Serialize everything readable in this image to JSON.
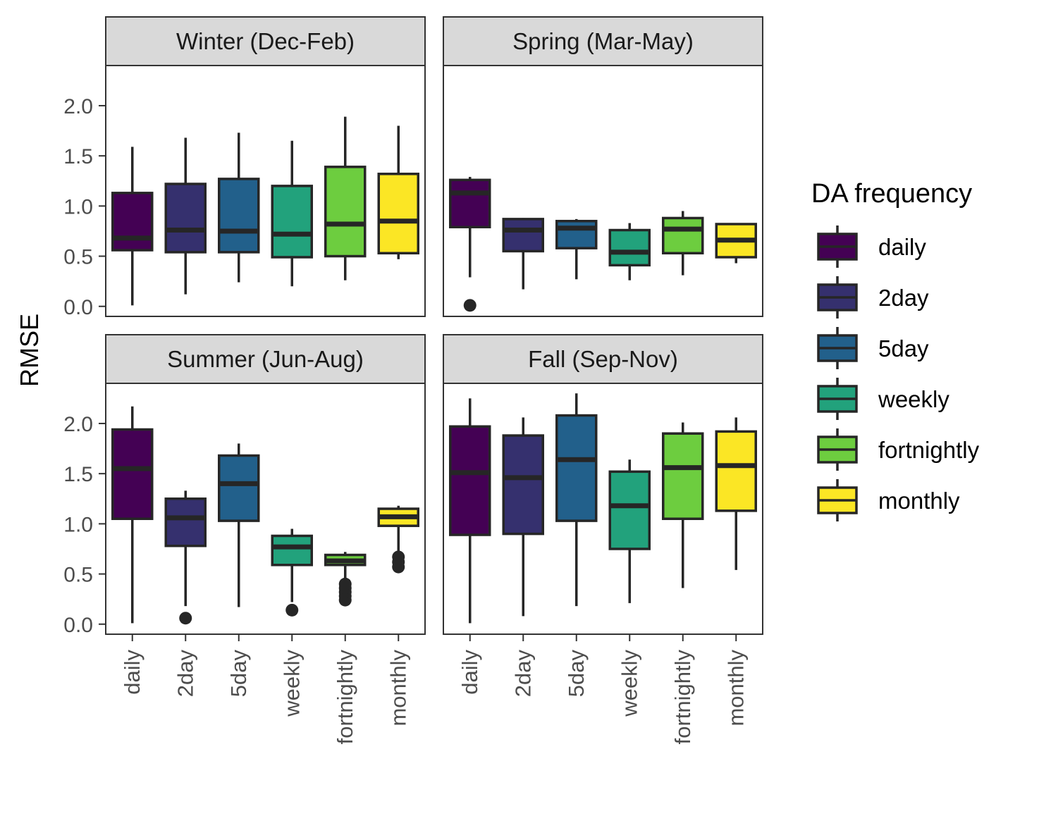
{
  "chart_data": {
    "type": "boxplot",
    "ylabel": "RMSE",
    "y_ticks": [
      "0.0",
      "0.5",
      "1.0",
      "1.5",
      "2.0"
    ],
    "ylim": [
      -0.1,
      2.4
    ],
    "categories": [
      "daily",
      "2day",
      "5day",
      "weekly",
      "fortnightly",
      "monthly"
    ],
    "colors": [
      "#440154",
      "#35306e",
      "#22608b",
      "#22a27c",
      "#6dcd3f",
      "#fbe625"
    ],
    "legend": {
      "title": "DA frequency",
      "items": [
        "daily",
        "2day",
        "5day",
        "weekly",
        "fortnightly",
        "monthly"
      ],
      "position": "right"
    },
    "panels": [
      {
        "title": "Winter (Dec-Feb)",
        "boxes": [
          {
            "category": "daily",
            "lower_whisker": 0.01,
            "q1": 0.56,
            "median": 0.68,
            "q3": 1.13,
            "upper_whisker": 1.59,
            "outliers": []
          },
          {
            "category": "2day",
            "lower_whisker": 0.12,
            "q1": 0.54,
            "median": 0.76,
            "q3": 1.22,
            "upper_whisker": 1.68,
            "outliers": []
          },
          {
            "category": "5day",
            "lower_whisker": 0.24,
            "q1": 0.54,
            "median": 0.75,
            "q3": 1.27,
            "upper_whisker": 1.73,
            "outliers": []
          },
          {
            "category": "weekly",
            "lower_whisker": 0.2,
            "q1": 0.49,
            "median": 0.72,
            "q3": 1.2,
            "upper_whisker": 1.65,
            "outliers": []
          },
          {
            "category": "fortnightly",
            "lower_whisker": 0.26,
            "q1": 0.5,
            "median": 0.82,
            "q3": 1.39,
            "upper_whisker": 1.89,
            "outliers": []
          },
          {
            "category": "monthly",
            "lower_whisker": 0.47,
            "q1": 0.53,
            "median": 0.85,
            "q3": 1.32,
            "upper_whisker": 1.8,
            "outliers": []
          }
        ]
      },
      {
        "title": "Spring (Mar-May)",
        "boxes": [
          {
            "category": "daily",
            "lower_whisker": 0.29,
            "q1": 0.79,
            "median": 1.13,
            "q3": 1.26,
            "upper_whisker": 1.29,
            "outliers": [
              0.01
            ]
          },
          {
            "category": "2day",
            "lower_whisker": 0.17,
            "q1": 0.55,
            "median": 0.76,
            "q3": 0.87,
            "upper_whisker": 0.88,
            "outliers": []
          },
          {
            "category": "5day",
            "lower_whisker": 0.27,
            "q1": 0.58,
            "median": 0.78,
            "q3": 0.85,
            "upper_whisker": 0.87,
            "outliers": []
          },
          {
            "category": "weekly",
            "lower_whisker": 0.26,
            "q1": 0.41,
            "median": 0.54,
            "q3": 0.76,
            "upper_whisker": 0.83,
            "outliers": []
          },
          {
            "category": "fortnightly",
            "lower_whisker": 0.31,
            "q1": 0.53,
            "median": 0.77,
            "q3": 0.88,
            "upper_whisker": 0.95,
            "outliers": []
          },
          {
            "category": "monthly",
            "lower_whisker": 0.43,
            "q1": 0.49,
            "median": 0.66,
            "q3": 0.82,
            "upper_whisker": 0.83,
            "outliers": []
          }
        ]
      },
      {
        "title": "Summer (Jun-Aug)",
        "boxes": [
          {
            "category": "daily",
            "lower_whisker": 0.01,
            "q1": 1.05,
            "median": 1.55,
            "q3": 1.94,
            "upper_whisker": 2.17,
            "outliers": []
          },
          {
            "category": "2day",
            "lower_whisker": 0.18,
            "q1": 0.78,
            "median": 1.06,
            "q3": 1.25,
            "upper_whisker": 1.33,
            "outliers": [
              0.06
            ]
          },
          {
            "category": "5day",
            "lower_whisker": 0.17,
            "q1": 1.03,
            "median": 1.4,
            "q3": 1.68,
            "upper_whisker": 1.8,
            "outliers": []
          },
          {
            "category": "weekly",
            "lower_whisker": 0.22,
            "q1": 0.59,
            "median": 0.77,
            "q3": 0.88,
            "upper_whisker": 0.95,
            "outliers": [
              0.14
            ]
          },
          {
            "category": "fortnightly",
            "lower_whisker": 0.42,
            "q1": 0.59,
            "median": 0.63,
            "q3": 0.69,
            "upper_whisker": 0.72,
            "outliers": [
              0.24,
              0.28,
              0.32,
              0.36,
              0.4
            ]
          },
          {
            "category": "monthly",
            "lower_whisker": 0.71,
            "q1": 0.98,
            "median": 1.07,
            "q3": 1.15,
            "upper_whisker": 1.18,
            "outliers": [
              0.57,
              0.62,
              0.67
            ]
          }
        ]
      },
      {
        "title": "Fall (Sep-Nov)",
        "boxes": [
          {
            "category": "daily",
            "lower_whisker": 0.01,
            "q1": 0.89,
            "median": 1.51,
            "q3": 1.97,
            "upper_whisker": 2.25,
            "outliers": []
          },
          {
            "category": "2day",
            "lower_whisker": 0.08,
            "q1": 0.9,
            "median": 1.46,
            "q3": 1.88,
            "upper_whisker": 2.06,
            "outliers": []
          },
          {
            "category": "5day",
            "lower_whisker": 0.18,
            "q1": 1.03,
            "median": 1.64,
            "q3": 2.08,
            "upper_whisker": 2.3,
            "outliers": []
          },
          {
            "category": "weekly",
            "lower_whisker": 0.21,
            "q1": 0.75,
            "median": 1.18,
            "q3": 1.52,
            "upper_whisker": 1.64,
            "outliers": []
          },
          {
            "category": "fortnightly",
            "lower_whisker": 0.36,
            "q1": 1.05,
            "median": 1.56,
            "q3": 1.9,
            "upper_whisker": 2.01,
            "outliers": []
          },
          {
            "category": "monthly",
            "lower_whisker": 0.54,
            "q1": 1.13,
            "median": 1.58,
            "q3": 1.92,
            "upper_whisker": 2.06,
            "outliers": []
          }
        ]
      }
    ]
  }
}
